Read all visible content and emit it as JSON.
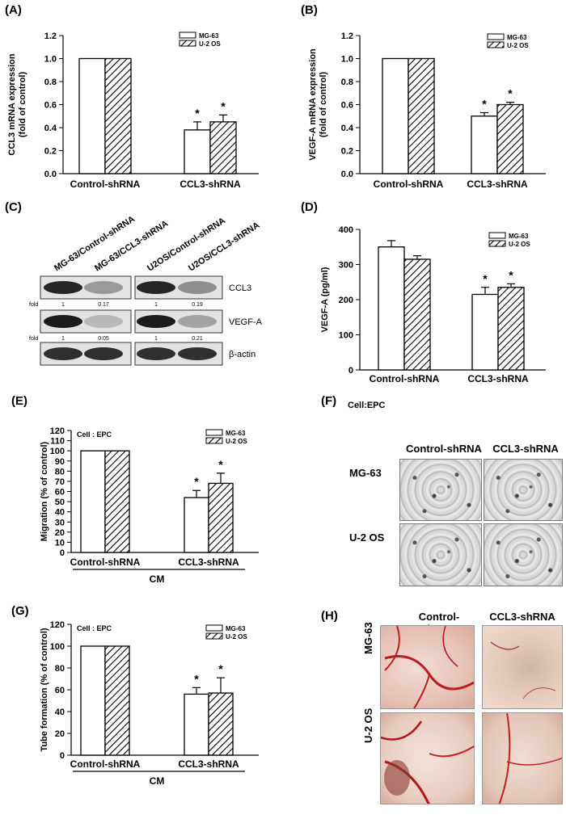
{
  "panels": {
    "A": "(A)",
    "B": "(B)",
    "C": "(C)",
    "D": "(D)",
    "E": "(E)",
    "F": "(F)",
    "G": "(G)",
    "H": "(H)"
  },
  "colors": {
    "bar_fill": "#ffffff",
    "stroke": "#000000",
    "hatch": "#000000"
  },
  "chart_data": [
    {
      "id": "A",
      "type": "bar",
      "ylabel": "CCL3 mRNA expression\n(fold of control)",
      "categories": [
        "Control-shRNA",
        "CCL3-shRNA"
      ],
      "series": [
        {
          "name": "MG-63",
          "values": [
            1.0,
            0.38
          ],
          "errors": [
            0,
            0.07
          ]
        },
        {
          "name": "U-2 OS",
          "values": [
            1.0,
            0.45
          ],
          "errors": [
            0,
            0.06
          ]
        }
      ],
      "ylim": [
        0,
        1.2
      ],
      "yticks": [
        "0.0",
        "0.2",
        "0.4",
        "0.6",
        "0.8",
        "1.0",
        "1.2"
      ],
      "significance": [
        "",
        "*"
      ],
      "legend_position": "top-right"
    },
    {
      "id": "B",
      "type": "bar",
      "ylabel": "VEGF-A mRNA expression\n(fold of control)",
      "categories": [
        "Control-shRNA",
        "CCL3-shRNA"
      ],
      "series": [
        {
          "name": "MG-63",
          "values": [
            1.0,
            0.5
          ],
          "errors": [
            0,
            0.03
          ]
        },
        {
          "name": "U-2 OS",
          "values": [
            1.0,
            0.6
          ],
          "errors": [
            0,
            0.02
          ]
        }
      ],
      "ylim": [
        0,
        1.2
      ],
      "yticks": [
        "0.0",
        "0.2",
        "0.4",
        "0.6",
        "0.8",
        "1.0",
        "1.2"
      ],
      "significance": [
        "",
        "*"
      ],
      "legend_position": "top-right"
    },
    {
      "id": "D",
      "type": "bar",
      "ylabel": "VEGF-A (pg/ml)",
      "categories": [
        "Control-shRNA",
        "CCL3-shRNA"
      ],
      "series": [
        {
          "name": "MG-63",
          "values": [
            350,
            215
          ],
          "errors": [
            18,
            20
          ]
        },
        {
          "name": "U-2 OS",
          "values": [
            315,
            235
          ],
          "errors": [
            10,
            10
          ]
        }
      ],
      "ylim": [
        0,
        400
      ],
      "yticks": [
        "0",
        "100",
        "200",
        "300",
        "400"
      ],
      "significance": [
        "",
        "*"
      ],
      "legend_position": "top-right"
    },
    {
      "id": "E",
      "type": "bar",
      "ylabel": "Migration (% of control)",
      "annotation": "Cell : EPC",
      "categories": [
        "Control-shRNA",
        "CCL3-shRNA"
      ],
      "xgroup": "CM",
      "series": [
        {
          "name": "MG-63",
          "values": [
            100,
            54
          ],
          "errors": [
            0,
            7
          ]
        },
        {
          "name": "U-2 OS",
          "values": [
            100,
            68
          ],
          "errors": [
            0,
            10
          ]
        }
      ],
      "ylim": [
        0,
        120
      ],
      "yticks": [
        "0",
        "10",
        "20",
        "30",
        "40",
        "50",
        "60",
        "70",
        "80",
        "90",
        "100",
        "110",
        "120"
      ],
      "significance": [
        "",
        "*"
      ],
      "legend_position": "top-right"
    },
    {
      "id": "G",
      "type": "bar",
      "ylabel": "Tube formation (% of control)",
      "annotation": "Cell : EPC",
      "categories": [
        "Control-shRNA",
        "CCL3-shRNA"
      ],
      "xgroup": "CM",
      "series": [
        {
          "name": "MG-63",
          "values": [
            100,
            56
          ],
          "errors": [
            0,
            6
          ]
        },
        {
          "name": "U-2 OS",
          "values": [
            100,
            57
          ],
          "errors": [
            0,
            14
          ]
        }
      ],
      "ylim": [
        0,
        120
      ],
      "yticks": [
        "0",
        "20",
        "40",
        "60",
        "80",
        "100",
        "120"
      ],
      "significance": [
        "",
        "*"
      ],
      "legend_position": "top-right"
    }
  ],
  "western_blot": {
    "lanes": [
      "MG-63/Control-shRNA",
      "MG-63/CCL3-shRNA",
      "U2OS/Control-shRNA",
      "U2OS/CCL3-shRNA"
    ],
    "rows": [
      {
        "protein": "CCL3",
        "fold_label": "fold",
        "folds": [
          "1",
          "0.17",
          "1",
          "0.19"
        ]
      },
      {
        "protein": "VEGF-A",
        "fold_label": "fold",
        "folds": [
          "1",
          "0.05",
          "1",
          "0.21"
        ]
      },
      {
        "protein": "β-actin",
        "fold_label": "",
        "folds": []
      }
    ]
  },
  "migration_images": {
    "title": "Cell:EPC",
    "columns": [
      "Control-shRNA",
      "CCL3-shRNA"
    ],
    "rows": [
      "MG-63",
      "U-2 OS"
    ]
  },
  "cam_images": {
    "columns": [
      "Control-shRNA",
      "CCL3-shRNA"
    ],
    "rows": [
      "MG-63",
      "U-2 OS"
    ]
  }
}
